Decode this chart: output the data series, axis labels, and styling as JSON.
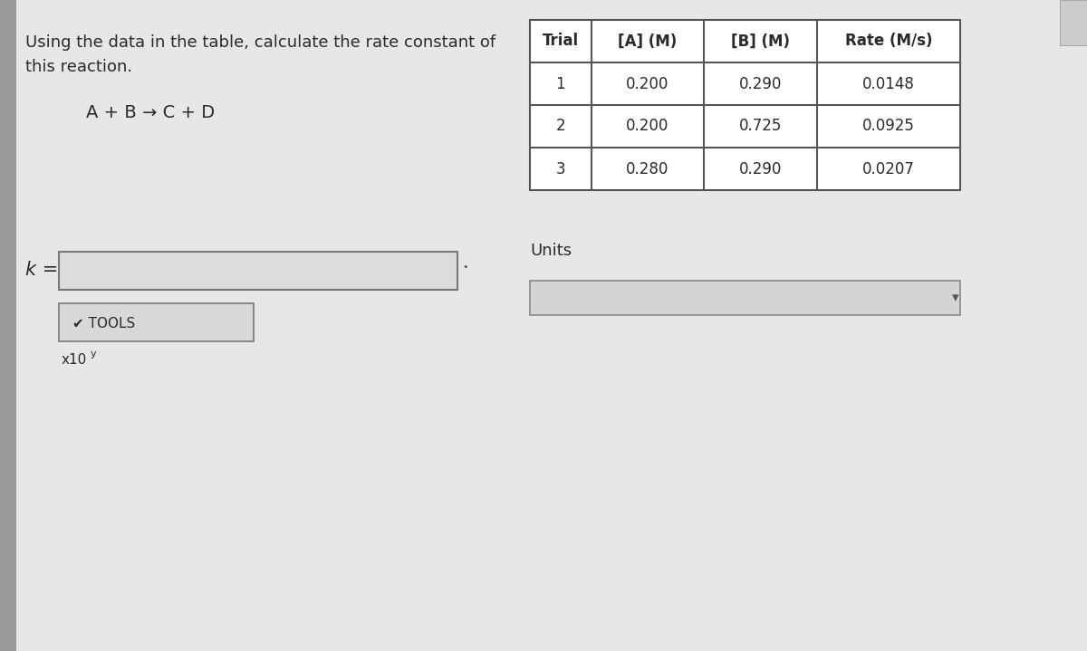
{
  "bg_color": "#c8c8c8",
  "paper_color": "#e8e7e5",
  "title_text_line1": "Using the data in the table, calculate the rate constant of",
  "title_text_line2": "this reaction.",
  "reaction_text": "A + B → C + D",
  "k_label": "k =",
  "tools_label": "✔ TOOLS",
  "x10_label": "x10",
  "x10_superscript": "y",
  "units_label": "Units",
  "table_headers": [
    "Trial",
    "[A] (M)",
    "[B] (M)",
    "Rate (M/s)"
  ],
  "table_data": [
    [
      "1",
      "0.200",
      "0.290",
      "0.0148"
    ],
    [
      "2",
      "0.200",
      "0.725",
      "0.0925"
    ],
    [
      "3",
      "0.280",
      "0.290",
      "0.0207"
    ]
  ],
  "text_color": "#2a2a2a",
  "table_border_color": "#555555",
  "input_box_color": "#dcdcdc",
  "input_box_border": "#888888",
  "left_bar_color": "#9a9a9a",
  "sidebar_color": "#b0b0b0"
}
